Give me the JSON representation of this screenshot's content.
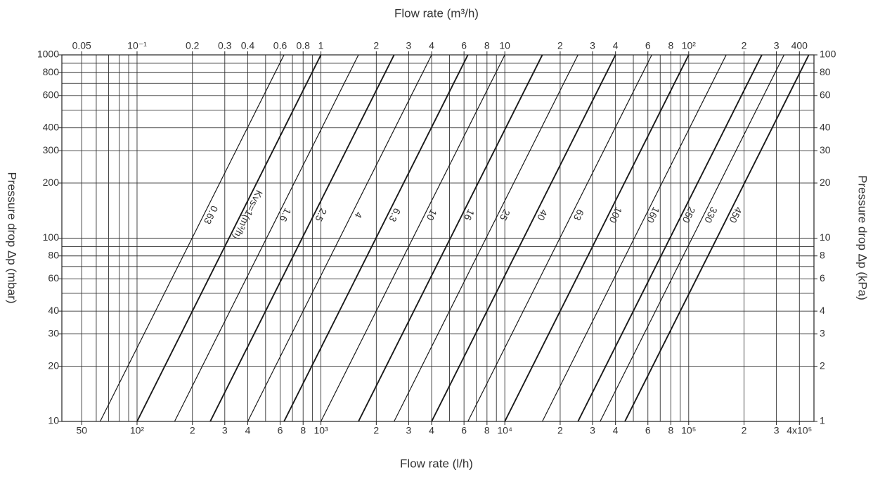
{
  "chart_data": {
    "type": "kv-lines",
    "x_label_top": "Flow rate (m³/h)",
    "x_label": "Flow rate (l/h)",
    "y_label": "Pressure drop Δp (mbar)",
    "y2_label": "Pressure drop Δp (kPa)",
    "log_x": true,
    "log_y": true,
    "grid": true,
    "color": "#1a1a1a",
    "xlim": [
      39,
      480000
    ],
    "x2lim": [
      0.039,
      480
    ],
    "ylim": [
      10,
      1000
    ],
    "y2lim": [
      1,
      100
    ],
    "xticks": [
      50,
      {
        "value": 100,
        "label": "10²"
      },
      {
        "value": 200,
        "label": "2"
      },
      {
        "value": 300,
        "label": "3"
      },
      {
        "value": 400,
        "label": "4"
      },
      {
        "value": 600,
        "label": "6"
      },
      {
        "value": 800,
        "label": "8"
      },
      {
        "value": 1000,
        "label": "10³"
      },
      {
        "value": 2000,
        "label": "2"
      },
      {
        "value": 3000,
        "label": "3"
      },
      {
        "value": 4000,
        "label": "4"
      },
      {
        "value": 6000,
        "label": "6"
      },
      {
        "value": 8000,
        "label": "8"
      },
      {
        "value": 10000,
        "label": "10⁴"
      },
      {
        "value": 20000,
        "label": "2"
      },
      {
        "value": 30000,
        "label": "3"
      },
      {
        "value": 40000,
        "label": "4"
      },
      {
        "value": 60000,
        "label": "6"
      },
      {
        "value": 80000,
        "label": "8"
      },
      {
        "value": 100000,
        "label": "10⁵"
      },
      {
        "value": 200000,
        "label": "2"
      },
      {
        "value": 300000,
        "label": "3"
      },
      {
        "value": 400000,
        "label": "4x10⁵"
      }
    ],
    "x2ticks": [
      0.05,
      {
        "value": 0.1,
        "label": "10⁻¹"
      },
      0.2,
      0.3,
      0.4,
      0.6,
      0.8,
      1,
      2,
      3,
      4,
      6,
      8,
      10,
      {
        "value": 20,
        "label": "2"
      },
      {
        "value": 30,
        "label": "3"
      },
      {
        "value": 40,
        "label": "4"
      },
      {
        "value": 60,
        "label": "6"
      },
      {
        "value": 80,
        "label": "8"
      },
      {
        "value": 100,
        "label": "10²"
      },
      {
        "value": 200,
        "label": "2"
      },
      {
        "value": 300,
        "label": "3"
      },
      400
    ],
    "yticks": [
      10,
      20,
      30,
      40,
      60,
      80,
      100,
      200,
      300,
      400,
      600,
      800,
      1000
    ],
    "y2ticks": [
      1,
      2,
      3,
      4,
      6,
      8,
      10,
      20,
      30,
      40,
      60,
      80,
      100
    ],
    "x_grid": [
      50,
      60,
      70,
      80,
      90,
      100,
      200,
      300,
      400,
      500,
      600,
      700,
      800,
      900,
      1000,
      2000,
      3000,
      4000,
      5000,
      6000,
      7000,
      8000,
      9000,
      10000,
      20000,
      30000,
      40000,
      50000,
      60000,
      70000,
      80000,
      90000,
      100000,
      200000,
      300000,
      400000
    ],
    "y_grid": [
      10,
      20,
      30,
      40,
      50,
      60,
      70,
      80,
      90,
      100,
      200,
      300,
      400,
      500,
      600,
      700,
      800,
      900,
      1000
    ],
    "series": [
      {
        "name": "0.63",
        "kv": 0.63
      },
      {
        "name": "Kvs=1(m³/h)",
        "kv": 1
      },
      {
        "name": "1.6",
        "kv": 1.6
      },
      {
        "name": "2.5",
        "kv": 2.5
      },
      {
        "name": "4",
        "kv": 4
      },
      {
        "name": "6.3",
        "kv": 6.3
      },
      {
        "name": "10",
        "kv": 10
      },
      {
        "name": "16",
        "kv": 16
      },
      {
        "name": "25",
        "kv": 25
      },
      {
        "name": "40",
        "kv": 40
      },
      {
        "name": "63",
        "kv": 63
      },
      {
        "name": "100",
        "kv": 100
      },
      {
        "name": "160",
        "kv": 160
      },
      {
        "name": "250",
        "kv": 250
      },
      {
        "name": "330",
        "kv": 330
      },
      {
        "name": "450",
        "kv": 450
      }
    ]
  }
}
